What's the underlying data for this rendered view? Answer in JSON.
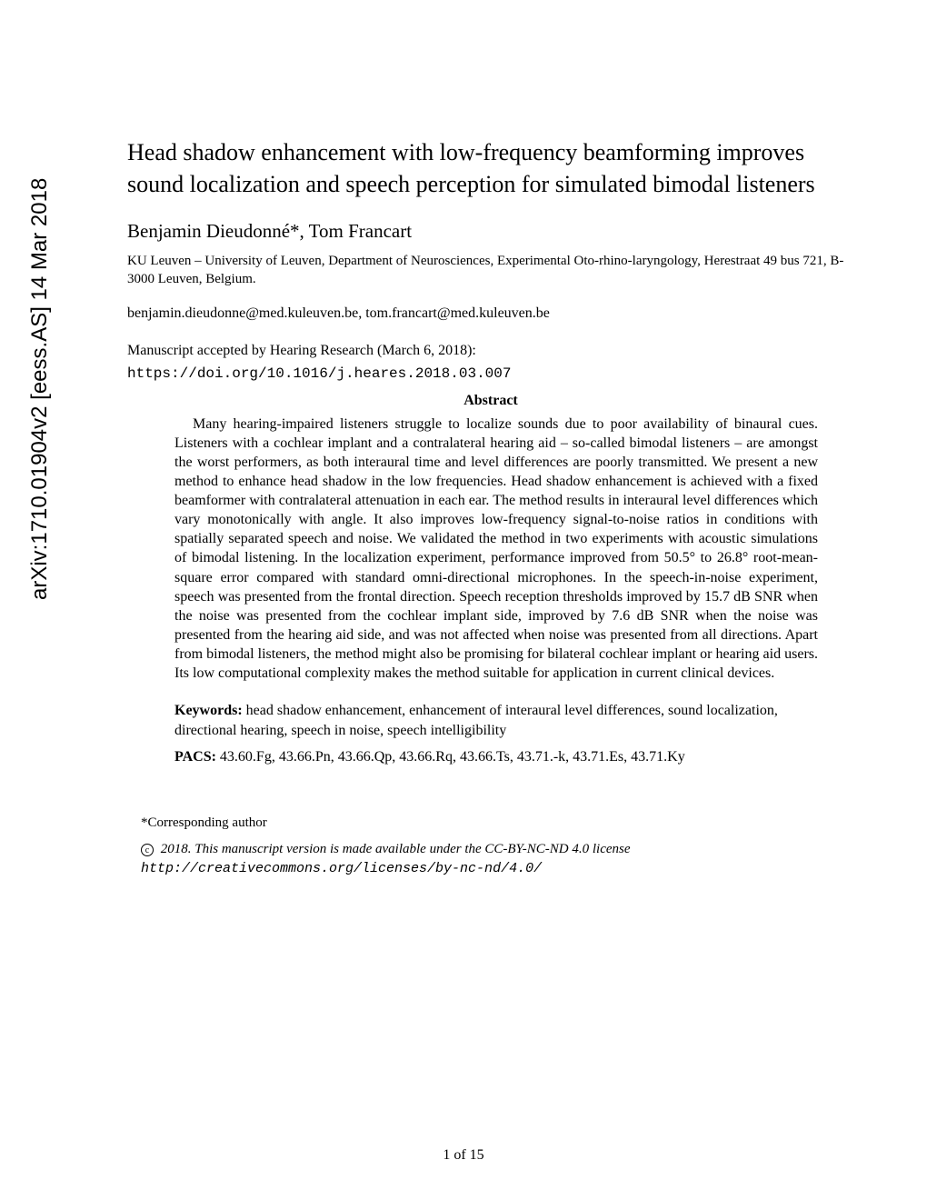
{
  "arxiv": {
    "identifier": "arXiv:1710.01904v2  [eess.AS]  14 Mar 2018"
  },
  "title": "Head shadow enhancement with low-frequency beamforming improves sound localization and speech perception for simulated bimodal listeners",
  "authors": "Benjamin Dieudonné*, Tom Francart",
  "affiliation": "KU Leuven – University of Leuven, Department of Neurosciences, Experimental Oto-rhino-laryngology, Herestraat 49 bus 721, B-3000 Leuven, Belgium.",
  "emails": "benjamin.dieudonne@med.kuleuven.be, tom.francart@med.kuleuven.be",
  "manuscript_note": "Manuscript accepted by Hearing Research (March 6, 2018):",
  "doi": "https://doi.org/10.1016/j.heares.2018.03.007",
  "abstract": {
    "heading": "Abstract",
    "body": "Many hearing-impaired listeners struggle to localize sounds due to poor availability of binaural cues. Listeners with a cochlear implant and a contralateral hearing aid – so-called bimodal listeners – are amongst the worst performers, as both interaural time and level differences are poorly transmitted. We present a new method to enhance head shadow in the low frequencies. Head shadow enhancement is achieved with a fixed beamformer with contralateral attenuation in each ear. The method results in interaural level differences which vary monotonically with angle. It also improves low-frequency signal-to-noise ratios in conditions with spatially separated speech and noise. We validated the method in two experiments with acoustic simulations of bimodal listening. In the localization experiment, performance improved from 50.5° to 26.8° root-mean-square error compared with standard omni-directional microphones. In the speech-in-noise experiment, speech was presented from the frontal direction. Speech reception thresholds improved by 15.7 dB SNR when the noise was presented from the cochlear implant side, improved by 7.6 dB SNR when the noise was presented from the hearing aid side, and was not affected when noise was presented from all directions. Apart from bimodal listeners, the method might also be promising for bilateral cochlear implant or hearing aid users. Its low computational complexity makes the method suitable for application in current clinical devices."
  },
  "keywords": {
    "label": "Keywords:",
    "text": " head shadow enhancement, enhancement of interaural level differences, sound localization, directional hearing, speech in noise, speech intelligibility"
  },
  "pacs": {
    "label": "PACS:",
    "text": " 43.60.Fg, 43.66.Pn, 43.66.Qp, 43.66.Rq, 43.66.Ts, 43.71.-k, 43.71.Es, 43.71.Ky"
  },
  "corresponding": "*Corresponding author",
  "license": {
    "symbol": "c",
    "text": " 2018. This manuscript version is made available under the CC-BY-NC-ND 4.0 license",
    "url": "http://creativecommons.org/licenses/by-nc-nd/4.0/"
  },
  "page_number": "1 of 15"
}
